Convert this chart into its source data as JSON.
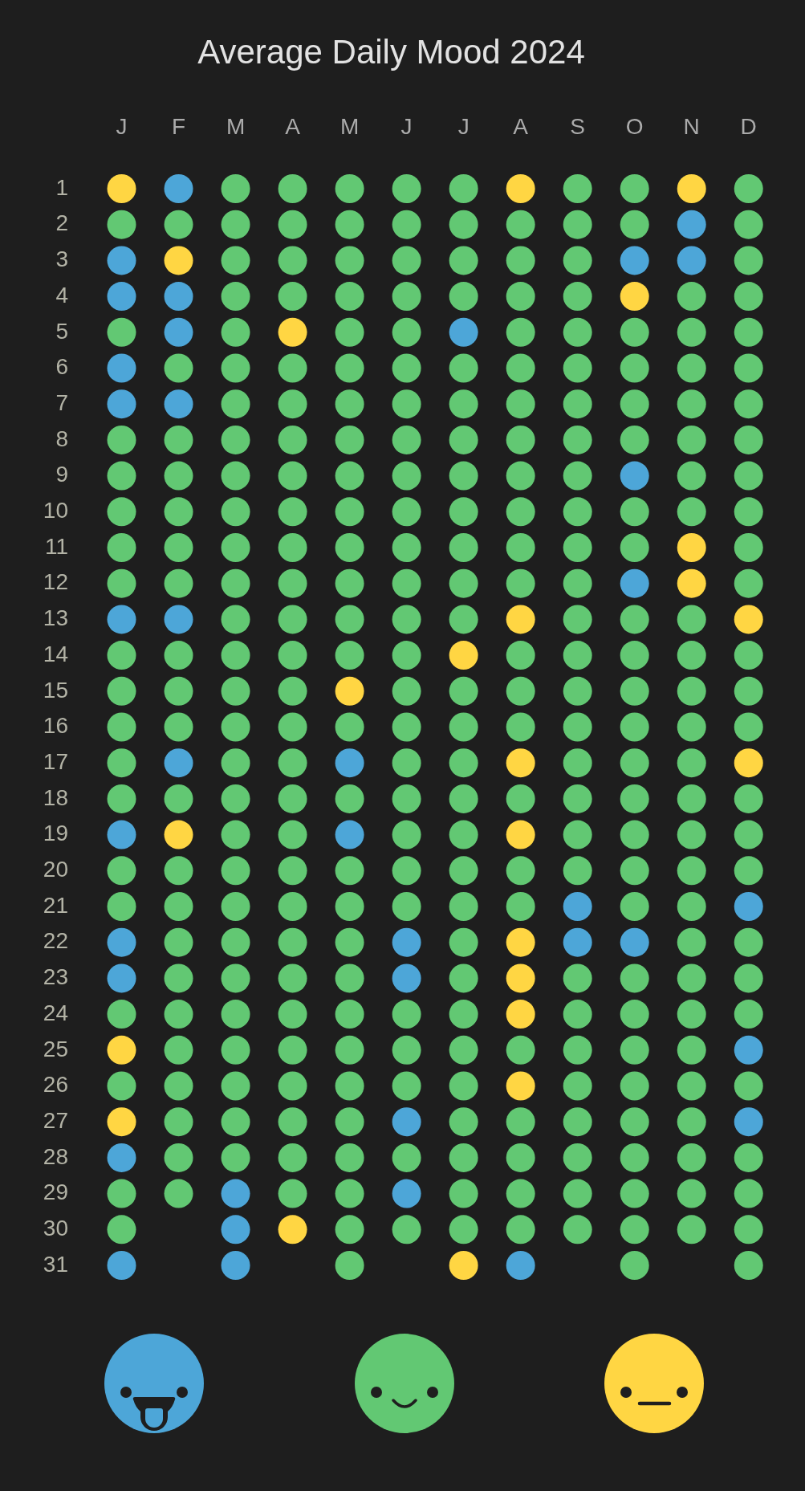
{
  "chart_data": {
    "type": "scatter",
    "title": "Average Daily Mood 2024",
    "categories": [
      "J",
      "F",
      "M",
      "A",
      "M",
      "J",
      "J",
      "A",
      "S",
      "O",
      "N",
      "D"
    ],
    "ylim": [
      31,
      1
    ],
    "yticks": [
      1,
      2,
      3,
      4,
      5,
      6,
      7,
      8,
      9,
      10,
      11,
      12,
      13,
      14,
      15,
      16,
      17,
      18,
      19,
      20,
      21,
      22,
      23,
      24,
      25,
      26,
      27,
      28,
      29,
      30,
      31
    ],
    "marker": "circle",
    "series": [
      {
        "values": [
          1,
          1,
          1,
          1,
          1,
          1,
          1,
          1,
          1,
          1,
          1,
          1
        ],
        "colors": [
          "#ffd643",
          "#4da6d8",
          "#62c873",
          "#62c873",
          "#62c873",
          "#62c873",
          "#62c873",
          "#ffd643",
          "#62c873",
          "#62c873",
          "#ffd643",
          "#62c873"
        ]
      },
      {
        "values": [
          2,
          2,
          2,
          2,
          2,
          2,
          2,
          2,
          2,
          2,
          2,
          2
        ],
        "colors": [
          "#62c873",
          "#62c873",
          "#62c873",
          "#62c873",
          "#62c873",
          "#62c873",
          "#62c873",
          "#62c873",
          "#62c873",
          "#62c873",
          "#4da6d8",
          "#62c873"
        ]
      },
      {
        "values": [
          3,
          3,
          3,
          3,
          3,
          3,
          3,
          3,
          3,
          3,
          3,
          3
        ],
        "colors": [
          "#4da6d8",
          "#ffd643",
          "#62c873",
          "#62c873",
          "#62c873",
          "#62c873",
          "#62c873",
          "#62c873",
          "#62c873",
          "#4da6d8",
          "#4da6d8",
          "#62c873"
        ]
      },
      {
        "values": [
          4,
          4,
          4,
          4,
          4,
          4,
          4,
          4,
          4,
          4,
          4,
          4
        ],
        "colors": [
          "#4da6d8",
          "#4da6d8",
          "#62c873",
          "#62c873",
          "#62c873",
          "#62c873",
          "#62c873",
          "#62c873",
          "#62c873",
          "#ffd643",
          "#62c873",
          "#62c873"
        ]
      },
      {
        "values": [
          5,
          5,
          5,
          5,
          5,
          5,
          5,
          5,
          5,
          5,
          5,
          5
        ],
        "colors": [
          "#62c873",
          "#4da6d8",
          "#62c873",
          "#ffd643",
          "#62c873",
          "#62c873",
          "#4da6d8",
          "#62c873",
          "#62c873",
          "#62c873",
          "#62c873",
          "#62c873"
        ]
      },
      {
        "values": [
          6,
          6,
          6,
          6,
          6,
          6,
          6,
          6,
          6,
          6,
          6,
          6
        ],
        "colors": [
          "#4da6d8",
          "#62c873",
          "#62c873",
          "#62c873",
          "#62c873",
          "#62c873",
          "#62c873",
          "#62c873",
          "#62c873",
          "#62c873",
          "#62c873",
          "#62c873"
        ]
      },
      {
        "values": [
          7,
          7,
          7,
          7,
          7,
          7,
          7,
          7,
          7,
          7,
          7,
          7
        ],
        "colors": [
          "#4da6d8",
          "#4da6d8",
          "#62c873",
          "#62c873",
          "#62c873",
          "#62c873",
          "#62c873",
          "#62c873",
          "#62c873",
          "#62c873",
          "#62c873",
          "#62c873"
        ]
      },
      {
        "values": [
          8,
          8,
          8,
          8,
          8,
          8,
          8,
          8,
          8,
          8,
          8,
          8
        ],
        "colors": [
          "#62c873",
          "#62c873",
          "#62c873",
          "#62c873",
          "#62c873",
          "#62c873",
          "#62c873",
          "#62c873",
          "#62c873",
          "#62c873",
          "#62c873",
          "#62c873"
        ]
      },
      {
        "values": [
          9,
          9,
          9,
          9,
          9,
          9,
          9,
          9,
          9,
          9,
          9,
          9
        ],
        "colors": [
          "#62c873",
          "#62c873",
          "#62c873",
          "#62c873",
          "#62c873",
          "#62c873",
          "#62c873",
          "#62c873",
          "#62c873",
          "#4da6d8",
          "#62c873",
          "#62c873"
        ]
      },
      {
        "values": [
          10,
          10,
          10,
          10,
          10,
          10,
          10,
          10,
          10,
          10,
          10,
          10
        ],
        "colors": [
          "#62c873",
          "#62c873",
          "#62c873",
          "#62c873",
          "#62c873",
          "#62c873",
          "#62c873",
          "#62c873",
          "#62c873",
          "#62c873",
          "#62c873",
          "#62c873"
        ]
      },
      {
        "values": [
          11,
          11,
          11,
          11,
          11,
          11,
          11,
          11,
          11,
          11,
          11,
          11
        ],
        "colors": [
          "#62c873",
          "#62c873",
          "#62c873",
          "#62c873",
          "#62c873",
          "#62c873",
          "#62c873",
          "#62c873",
          "#62c873",
          "#62c873",
          "#ffd643",
          "#62c873"
        ]
      },
      {
        "values": [
          12,
          12,
          12,
          12,
          12,
          12,
          12,
          12,
          12,
          12,
          12,
          12
        ],
        "colors": [
          "#62c873",
          "#62c873",
          "#62c873",
          "#62c873",
          "#62c873",
          "#62c873",
          "#62c873",
          "#62c873",
          "#62c873",
          "#4da6d8",
          "#ffd643",
          "#62c873"
        ]
      },
      {
        "values": [
          13,
          13,
          13,
          13,
          13,
          13,
          13,
          13,
          13,
          13,
          13,
          13
        ],
        "colors": [
          "#4da6d8",
          "#4da6d8",
          "#62c873",
          "#62c873",
          "#62c873",
          "#62c873",
          "#62c873",
          "#ffd643",
          "#62c873",
          "#62c873",
          "#62c873",
          "#ffd643"
        ]
      },
      {
        "values": [
          14,
          14,
          14,
          14,
          14,
          14,
          14,
          14,
          14,
          14,
          14,
          14
        ],
        "colors": [
          "#62c873",
          "#62c873",
          "#62c873",
          "#62c873",
          "#62c873",
          "#62c873",
          "#ffd643",
          "#62c873",
          "#62c873",
          "#62c873",
          "#62c873",
          "#62c873"
        ]
      },
      {
        "values": [
          15,
          15,
          15,
          15,
          15,
          15,
          15,
          15,
          15,
          15,
          15,
          15
        ],
        "colors": [
          "#62c873",
          "#62c873",
          "#62c873",
          "#62c873",
          "#ffd643",
          "#62c873",
          "#62c873",
          "#62c873",
          "#62c873",
          "#62c873",
          "#62c873",
          "#62c873"
        ]
      },
      {
        "values": [
          16,
          16,
          16,
          16,
          16,
          16,
          16,
          16,
          16,
          16,
          16,
          16
        ],
        "colors": [
          "#62c873",
          "#62c873",
          "#62c873",
          "#62c873",
          "#62c873",
          "#62c873",
          "#62c873",
          "#62c873",
          "#62c873",
          "#62c873",
          "#62c873",
          "#62c873"
        ]
      },
      {
        "values": [
          17,
          17,
          17,
          17,
          17,
          17,
          17,
          17,
          17,
          17,
          17,
          17
        ],
        "colors": [
          "#62c873",
          "#4da6d8",
          "#62c873",
          "#62c873",
          "#4da6d8",
          "#62c873",
          "#62c873",
          "#ffd643",
          "#62c873",
          "#62c873",
          "#62c873",
          "#ffd643"
        ]
      },
      {
        "values": [
          18,
          18,
          18,
          18,
          18,
          18,
          18,
          18,
          18,
          18,
          18,
          18
        ],
        "colors": [
          "#62c873",
          "#62c873",
          "#62c873",
          "#62c873",
          "#62c873",
          "#62c873",
          "#62c873",
          "#62c873",
          "#62c873",
          "#62c873",
          "#62c873",
          "#62c873"
        ]
      },
      {
        "values": [
          19,
          19,
          19,
          19,
          19,
          19,
          19,
          19,
          19,
          19,
          19,
          19
        ],
        "colors": [
          "#4da6d8",
          "#ffd643",
          "#62c873",
          "#62c873",
          "#4da6d8",
          "#62c873",
          "#62c873",
          "#ffd643",
          "#62c873",
          "#62c873",
          "#62c873",
          "#62c873"
        ]
      },
      {
        "values": [
          20,
          20,
          20,
          20,
          20,
          20,
          20,
          20,
          20,
          20,
          20,
          20
        ],
        "colors": [
          "#62c873",
          "#62c873",
          "#62c873",
          "#62c873",
          "#62c873",
          "#62c873",
          "#62c873",
          "#62c873",
          "#62c873",
          "#62c873",
          "#62c873",
          "#62c873"
        ]
      },
      {
        "values": [
          21,
          21,
          21,
          21,
          21,
          21,
          21,
          21,
          21,
          21,
          21,
          21
        ],
        "colors": [
          "#62c873",
          "#62c873",
          "#62c873",
          "#62c873",
          "#62c873",
          "#62c873",
          "#62c873",
          "#62c873",
          "#4da6d8",
          "#62c873",
          "#62c873",
          "#4da6d8"
        ]
      },
      {
        "values": [
          22,
          22,
          22,
          22,
          22,
          22,
          22,
          22,
          22,
          22,
          22,
          22
        ],
        "colors": [
          "#4da6d8",
          "#62c873",
          "#62c873",
          "#62c873",
          "#62c873",
          "#4da6d8",
          "#62c873",
          "#ffd643",
          "#4da6d8",
          "#4da6d8",
          "#62c873",
          "#62c873"
        ]
      },
      {
        "values": [
          23,
          23,
          23,
          23,
          23,
          23,
          23,
          23,
          23,
          23,
          23,
          23
        ],
        "colors": [
          "#4da6d8",
          "#62c873",
          "#62c873",
          "#62c873",
          "#62c873",
          "#4da6d8",
          "#62c873",
          "#ffd643",
          "#62c873",
          "#62c873",
          "#62c873",
          "#62c873"
        ]
      },
      {
        "values": [
          24,
          24,
          24,
          24,
          24,
          24,
          24,
          24,
          24,
          24,
          24,
          24
        ],
        "colors": [
          "#62c873",
          "#62c873",
          "#62c873",
          "#62c873",
          "#62c873",
          "#62c873",
          "#62c873",
          "#ffd643",
          "#62c873",
          "#62c873",
          "#62c873",
          "#62c873"
        ]
      },
      {
        "values": [
          25,
          25,
          25,
          25,
          25,
          25,
          25,
          25,
          25,
          25,
          25,
          25
        ],
        "colors": [
          "#ffd643",
          "#62c873",
          "#62c873",
          "#62c873",
          "#62c873",
          "#62c873",
          "#62c873",
          "#62c873",
          "#62c873",
          "#62c873",
          "#62c873",
          "#4da6d8"
        ]
      },
      {
        "values": [
          26,
          26,
          26,
          26,
          26,
          26,
          26,
          26,
          26,
          26,
          26,
          26
        ],
        "colors": [
          "#62c873",
          "#62c873",
          "#62c873",
          "#62c873",
          "#62c873",
          "#62c873",
          "#62c873",
          "#ffd643",
          "#62c873",
          "#62c873",
          "#62c873",
          "#62c873"
        ]
      },
      {
        "values": [
          27,
          27,
          27,
          27,
          27,
          27,
          27,
          27,
          27,
          27,
          27,
          27
        ],
        "colors": [
          "#ffd643",
          "#62c873",
          "#62c873",
          "#62c873",
          "#62c873",
          "#4da6d8",
          "#62c873",
          "#62c873",
          "#62c873",
          "#62c873",
          "#62c873",
          "#4da6d8"
        ]
      },
      {
        "values": [
          28,
          28,
          28,
          28,
          28,
          28,
          28,
          28,
          28,
          28,
          28,
          28
        ],
        "colors": [
          "#4da6d8",
          "#62c873",
          "#62c873",
          "#62c873",
          "#62c873",
          "#62c873",
          "#62c873",
          "#62c873",
          "#62c873",
          "#62c873",
          "#62c873",
          "#62c873"
        ]
      },
      {
        "values": [
          29,
          29,
          29,
          29,
          29,
          29,
          29,
          29,
          29,
          29,
          29,
          29
        ],
        "colors": [
          "#62c873",
          "#62c873",
          "#4da6d8",
          "#62c873",
          "#62c873",
          "#4da6d8",
          "#62c873",
          "#62c873",
          "#62c873",
          "#62c873",
          "#62c873",
          "#62c873"
        ]
      },
      {
        "values": [
          30,
          null,
          30,
          30,
          30,
          30,
          30,
          30,
          30,
          30,
          30,
          30
        ],
        "colors": [
          "#62c873",
          null,
          "#4da6d8",
          "#ffd643",
          "#62c873",
          "#62c873",
          "#62c873",
          "#62c873",
          "#62c873",
          "#62c873",
          "#62c873",
          "#62c873"
        ]
      },
      {
        "values": [
          31,
          null,
          31,
          null,
          31,
          null,
          31,
          31,
          null,
          31,
          null,
          31
        ],
        "colors": [
          "#4da6d8",
          null,
          "#4da6d8",
          null,
          "#62c873",
          null,
          "#ffd643",
          "#4da6d8",
          null,
          "#62c873",
          null,
          "#62c873"
        ]
      }
    ]
  }
}
